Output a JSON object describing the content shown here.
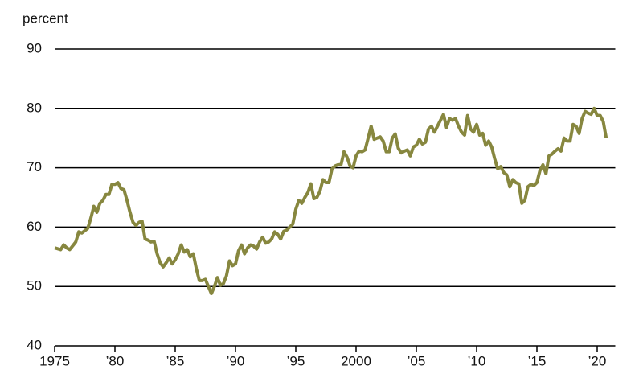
{
  "chart_data": {
    "type": "line",
    "y_label": "percent",
    "x": [
      1975.0,
      1975.5,
      1975.75,
      1976.0,
      1976.25,
      1976.75,
      1977.0,
      1977.25,
      1977.75,
      1978.0,
      1978.25,
      1978.5,
      1978.75,
      1979.0,
      1979.25,
      1979.5,
      1979.75,
      1980.0,
      1980.25,
      1980.5,
      1980.75,
      1981.0,
      1981.25,
      1981.5,
      1981.75,
      1982.0,
      1982.25,
      1982.5,
      1982.75,
      1983.0,
      1983.25,
      1983.5,
      1983.75,
      1984.0,
      1984.25,
      1984.5,
      1984.75,
      1985.0,
      1985.25,
      1985.5,
      1985.75,
      1986.0,
      1986.25,
      1986.5,
      1986.75,
      1987.0,
      1987.25,
      1987.5,
      1987.75,
      1988.0,
      1988.25,
      1988.5,
      1988.75,
      1989.0,
      1989.25,
      1989.5,
      1989.75,
      1990.0,
      1990.25,
      1990.5,
      1990.75,
      1991.0,
      1991.25,
      1991.5,
      1991.75,
      1992.0,
      1992.25,
      1992.5,
      1992.75,
      1993.0,
      1993.25,
      1993.5,
      1993.75,
      1994.0,
      1994.25,
      1994.5,
      1994.75,
      1995.0,
      1995.25,
      1995.5,
      1995.75,
      1996.0,
      1996.25,
      1996.5,
      1996.75,
      1997.0,
      1997.25,
      1997.5,
      1997.75,
      1998.0,
      1998.25,
      1998.5,
      1998.75,
      1999.0,
      1999.25,
      1999.5,
      1999.75,
      2000.0,
      2000.25,
      2000.5,
      2000.75,
      2001.0,
      2001.25,
      2001.5,
      2001.75,
      2002.0,
      2002.25,
      2002.5,
      2002.75,
      2003.0,
      2003.25,
      2003.5,
      2003.75,
      2004.0,
      2004.25,
      2004.5,
      2004.75,
      2005.0,
      2005.25,
      2005.5,
      2005.75,
      2006.0,
      2006.25,
      2006.5,
      2006.75,
      2007.0,
      2007.25,
      2007.5,
      2007.75,
      2008.0,
      2008.25,
      2008.5,
      2008.75,
      2009.0,
      2009.25,
      2009.5,
      2009.75,
      2010.0,
      2010.25,
      2010.5,
      2010.75,
      2011.0,
      2011.25,
      2011.5,
      2011.75,
      2012.0,
      2012.25,
      2012.5,
      2012.75,
      2013.0,
      2013.25,
      2013.5,
      2013.75,
      2014.0,
      2014.25,
      2014.5,
      2014.75,
      2015.0,
      2015.25,
      2015.5,
      2015.75,
      2016.0,
      2016.25,
      2016.5,
      2016.75,
      2017.0,
      2017.25,
      2017.5,
      2017.75,
      2018.0,
      2018.25,
      2018.5,
      2018.75,
      2019.0,
      2019.25,
      2019.5,
      2019.75,
      2020.0,
      2020.25,
      2020.5,
      2020.75
    ],
    "series": [
      {
        "color": "#87873f",
        "values": [
          56.5,
          56.2,
          57.0,
          56.5,
          56.2,
          57.5,
          59.2,
          59.0,
          59.8,
          61.5,
          63.5,
          62.5,
          64.0,
          64.5,
          65.5,
          65.5,
          67.2,
          67.2,
          67.5,
          66.5,
          66.3,
          64.5,
          62.5,
          60.8,
          60.3,
          60.8,
          61.0,
          58.0,
          57.8,
          57.5,
          57.6,
          55.5,
          54.0,
          53.3,
          54.0,
          54.8,
          53.8,
          54.5,
          55.5,
          57.0,
          55.8,
          56.2,
          55.0,
          55.5,
          53.0,
          51.0,
          51.0,
          51.2,
          50.0,
          48.8,
          50.0,
          51.5,
          50.2,
          50.5,
          51.8,
          54.3,
          53.5,
          53.8,
          56.0,
          57.0,
          55.5,
          56.5,
          57.0,
          56.8,
          56.3,
          57.5,
          58.3,
          57.3,
          57.5,
          58.0,
          59.2,
          58.8,
          58.0,
          59.3,
          59.5,
          60.0,
          60.5,
          63.0,
          64.5,
          64.0,
          65.0,
          65.8,
          67.3,
          64.8,
          65.0,
          66.0,
          68.0,
          67.5,
          67.5,
          69.8,
          70.3,
          70.5,
          70.5,
          72.7,
          71.8,
          70.3,
          70.0,
          72.0,
          72.8,
          72.7,
          73.0,
          75.0,
          77.0,
          74.8,
          75.0,
          75.2,
          74.5,
          72.7,
          72.7,
          75.0,
          75.7,
          73.3,
          72.5,
          72.8,
          73.0,
          72.0,
          73.5,
          73.8,
          74.8,
          74.0,
          74.3,
          76.5,
          77.0,
          76.0,
          77.0,
          78.0,
          79.0,
          76.8,
          78.3,
          78.0,
          78.3,
          77.0,
          76.0,
          75.5,
          78.8,
          76.5,
          76.0,
          77.3,
          75.5,
          75.8,
          73.8,
          74.5,
          73.5,
          71.5,
          69.8,
          70.2,
          69.2,
          68.8,
          66.8,
          68.0,
          67.5,
          67.3,
          64.0,
          64.5,
          66.8,
          67.2,
          67.0,
          67.5,
          69.5,
          70.5,
          69.0,
          72.0,
          72.3,
          72.8,
          73.2,
          72.8,
          75.0,
          74.5,
          74.5,
          77.3,
          77.0,
          75.8,
          78.3,
          79.5,
          79.2,
          79.0,
          80.0,
          78.8,
          78.8,
          77.8,
          75.0
        ]
      }
    ],
    "xlim": [
      1975,
      2021.5
    ],
    "xticks": [
      1975,
      {
        "value": 1980,
        "label": "’80"
      },
      {
        "value": 1985,
        "label": "’85"
      },
      {
        "value": 1990,
        "label": "’90"
      },
      {
        "value": 1995,
        "label": "’95"
      },
      2000,
      {
        "value": 2005,
        "label": "’05"
      },
      {
        "value": 2010,
        "label": "’10"
      },
      {
        "value": 2015,
        "label": "’15"
      },
      {
        "value": 2020,
        "label": "’20"
      }
    ],
    "ylim": [
      40,
      90
    ],
    "yticks": [
      40,
      50,
      60,
      70,
      80,
      90
    ],
    "grid": true
  }
}
